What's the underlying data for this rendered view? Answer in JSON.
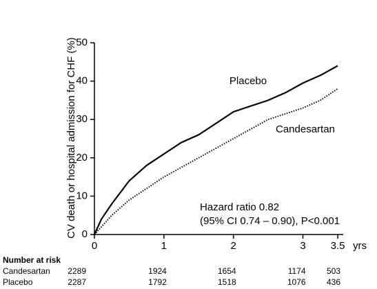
{
  "chart_data": {
    "type": "line",
    "ylabel": "CV death or hospital admission for CHF (%)",
    "xlabel": "yrs",
    "x": [
      0,
      0.1,
      0.25,
      0.5,
      0.75,
      1,
      1.25,
      1.5,
      1.75,
      2,
      2.25,
      2.5,
      2.75,
      3,
      3.25,
      3.5
    ],
    "series": [
      {
        "name": "Placebo",
        "color": "#000000",
        "style": "solid",
        "values": [
          0,
          4,
          8,
          14,
          18,
          21,
          24,
          26,
          29,
          32,
          33.5,
          35,
          37,
          39.5,
          41.5,
          44
        ]
      },
      {
        "name": "Candesartan",
        "color": "#000000",
        "style": "dotted",
        "values": [
          0,
          2,
          5,
          9,
          12,
          15,
          17.5,
          20,
          22.5,
          25,
          27.5,
          30,
          31.5,
          33,
          35,
          38
        ]
      }
    ],
    "xlim": [
      0,
      3.5
    ],
    "xticks": [
      0,
      1,
      2,
      3,
      3.5
    ],
    "ylim": [
      0,
      50
    ],
    "yticks": [
      0,
      10,
      20,
      30,
      40,
      50
    ],
    "annotations": [
      "Hazard ratio 0.82",
      "(95% CI 0.74 – 0.90), P<0.001"
    ]
  },
  "risk_table": {
    "title": "Number at risk",
    "rows": [
      {
        "label": "Candesartan",
        "values": [
          2289,
          1924,
          1654,
          1174,
          503
        ]
      },
      {
        "label": "Placebo",
        "values": [
          2287,
          1792,
          1518,
          1076,
          436
        ]
      }
    ]
  }
}
